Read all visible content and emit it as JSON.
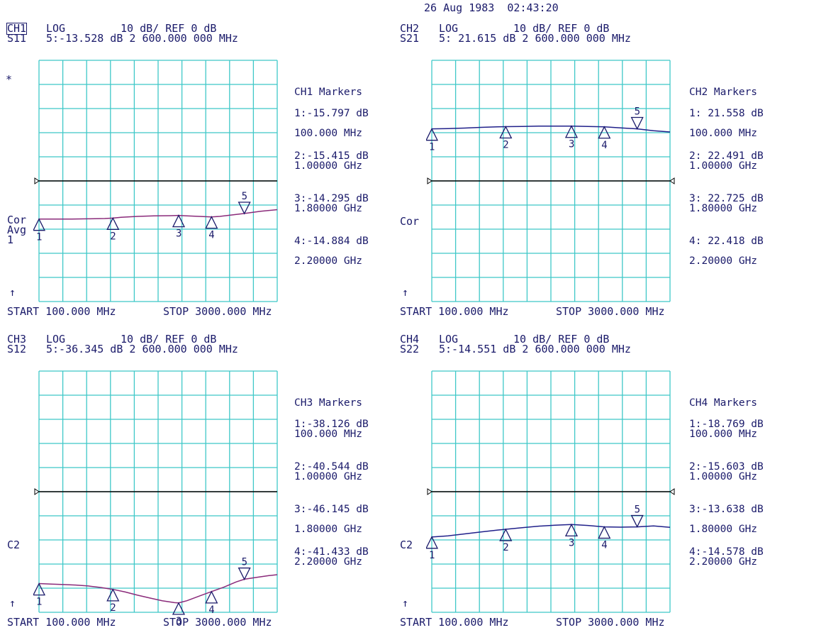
{
  "timestamp": "26 Aug 1983  02:43:20",
  "colors": {
    "grid": "#3fc8c8",
    "text": "#1a1a6a",
    "trace_purple": "#8a2a7a",
    "trace_blue": "#20208a",
    "ref": "#000000"
  },
  "channels": [
    {
      "id": "ch1",
      "label": "CH1",
      "boxed": true,
      "format": "LOG",
      "scale": "10 dB/ REF 0 dB",
      "param": "S11",
      "readout": "5:-13.528 dB 2 600.000 000 MHz",
      "start": "START 100.000 MHz",
      "stop": "STOP 3000.000 MHz",
      "flags": [
        "Cor",
        "Avg",
        "1"
      ],
      "star": "*",
      "markers_title": "CH1 Markers",
      "markers": [
        {
          "value": "1:-15.797 dB",
          "freq": "100.000 MHz"
        },
        {
          "value": "2:-15.415 dB",
          "freq": "1.00000 GHz"
        },
        {
          "value": "3:-14.295 dB",
          "freq": "1.80000 GHz"
        },
        {
          "value": "4:-14.884 dB",
          "freq": "2.20000 GHz"
        }
      ]
    },
    {
      "id": "ch2",
      "label": "CH2",
      "boxed": false,
      "format": "LOG",
      "scale": "10 dB/ REF 0 dB",
      "param": "S21",
      "readout": "5: 21.615 dB 2 600.000 000 MHz",
      "start": "START 100.000 MHz",
      "stop": "STOP 3000.000 MHz",
      "flags": [
        "Cor"
      ],
      "star": "",
      "markers_title": "CH2 Markers",
      "markers": [
        {
          "value": "1: 21.558 dB",
          "freq": "100.000 MHz"
        },
        {
          "value": "2: 22.491 dB",
          "freq": "1.00000 GHz"
        },
        {
          "value": "3: 22.725 dB",
          "freq": "1.80000 GHz"
        },
        {
          "value": "4: 22.418 dB",
          "freq": "2.20000 GHz"
        }
      ]
    },
    {
      "id": "ch3",
      "label": "CH3",
      "boxed": false,
      "format": "LOG",
      "scale": "10 dB/ REF 0 dB",
      "param": "S12",
      "readout": "5:-36.345 dB 2 600.000 000 MHz",
      "start": "START 100.000 MHz",
      "stop": "STOP 3000.000 MHz",
      "flags": [
        "C2"
      ],
      "star": "",
      "markers_title": "CH3 Markers",
      "markers": [
        {
          "value": "1:-38.126 dB",
          "freq": "100.000 MHz"
        },
        {
          "value": "2:-40.544 dB",
          "freq": "1.00000 GHz"
        },
        {
          "value": "3:-46.145 dB",
          "freq": "1.80000 GHz"
        },
        {
          "value": "4:-41.433 dB",
          "freq": "2.20000 GHz"
        }
      ]
    },
    {
      "id": "ch4",
      "label": "CH4",
      "boxed": false,
      "format": "LOG",
      "scale": "10 dB/ REF 0 dB",
      "param": "S22",
      "readout": "5:-14.551 dB 2 600.000 000 MHz",
      "start": "START 100.000 MHz",
      "stop": "STOP 3000.000 MHz",
      "flags": [
        "C2"
      ],
      "star": "",
      "markers_title": "CH4 Markers",
      "markers": [
        {
          "value": "1:-18.769 dB",
          "freq": "100.000 MHz"
        },
        {
          "value": "2:-15.603 dB",
          "freq": "1.00000 GHz"
        },
        {
          "value": "3:-13.638 dB",
          "freq": "1.80000 GHz"
        },
        {
          "value": "4:-14.578 dB",
          "freq": "2.20000 GHz"
        }
      ]
    }
  ],
  "chart_data": [
    {
      "type": "line",
      "title": "S11",
      "xlabel": "MHz",
      "ylabel": "dB",
      "xlim": [
        100,
        3000
      ],
      "ylim": [
        -50,
        50
      ],
      "grid": true,
      "reference_value": 0,
      "series": [
        {
          "name": "S11",
          "color": "#8a2a7a",
          "x": [
            100,
            300,
            500,
            700,
            900,
            1000,
            1100,
            1300,
            1500,
            1700,
            1800,
            1900,
            2100,
            2200,
            2300,
            2500,
            2600,
            2800,
            3000
          ],
          "y": [
            -15.8,
            -15.8,
            -15.8,
            -15.7,
            -15.6,
            -15.4,
            -15.1,
            -14.7,
            -14.5,
            -14.4,
            -14.3,
            -14.5,
            -14.8,
            -14.9,
            -14.7,
            -13.9,
            -13.5,
            -12.6,
            -11.9
          ]
        }
      ],
      "markers": [
        {
          "n": 1,
          "x": 100,
          "y": -15.797
        },
        {
          "n": 2,
          "x": 1000,
          "y": -15.415
        },
        {
          "n": 3,
          "x": 1800,
          "y": -14.295
        },
        {
          "n": 4,
          "x": 2200,
          "y": -14.884
        },
        {
          "n": 5,
          "x": 2600,
          "y": -13.528
        }
      ]
    },
    {
      "type": "line",
      "title": "S21",
      "xlabel": "MHz",
      "ylabel": "dB",
      "xlim": [
        100,
        3000
      ],
      "ylim": [
        -50,
        50
      ],
      "grid": true,
      "reference_value": 0,
      "series": [
        {
          "name": "S21",
          "color": "#20208a",
          "x": [
            100,
            300,
            500,
            700,
            900,
            1000,
            1200,
            1400,
            1600,
            1800,
            2000,
            2200,
            2400,
            2600,
            2800,
            3000
          ],
          "y": [
            21.6,
            21.7,
            21.9,
            22.2,
            22.4,
            22.5,
            22.6,
            22.7,
            22.7,
            22.7,
            22.6,
            22.4,
            22.0,
            21.6,
            20.8,
            20.3
          ]
        }
      ],
      "markers": [
        {
          "n": 1,
          "x": 100,
          "y": 21.558
        },
        {
          "n": 2,
          "x": 1000,
          "y": 22.491
        },
        {
          "n": 3,
          "x": 1800,
          "y": 22.725
        },
        {
          "n": 4,
          "x": 2200,
          "y": 22.418
        },
        {
          "n": 5,
          "x": 2600,
          "y": 21.615
        }
      ]
    },
    {
      "type": "line",
      "title": "S12",
      "xlabel": "MHz",
      "ylabel": "dB",
      "xlim": [
        100,
        3000
      ],
      "ylim": [
        -50,
        50
      ],
      "grid": true,
      "reference_value": 0,
      "series": [
        {
          "name": "S12",
          "color": "#8a2a7a",
          "x": [
            100,
            250,
            400,
            550,
            700,
            850,
            1000,
            1150,
            1300,
            1450,
            1600,
            1750,
            1800,
            1900,
            2050,
            2200,
            2350,
            2500,
            2600,
            2750,
            2900,
            3000
          ],
          "y": [
            -38.1,
            -38.3,
            -38.5,
            -38.7,
            -39.1,
            -39.7,
            -40.5,
            -41.6,
            -42.9,
            -44.1,
            -45.2,
            -46.0,
            -46.1,
            -45.2,
            -43.3,
            -41.4,
            -39.6,
            -37.4,
            -36.3,
            -35.5,
            -34.8,
            -34.4
          ]
        }
      ],
      "markers": [
        {
          "n": 1,
          "x": 100,
          "y": -38.126
        },
        {
          "n": 2,
          "x": 1000,
          "y": -40.544
        },
        {
          "n": 3,
          "x": 1800,
          "y": -46.145
        },
        {
          "n": 4,
          "x": 2200,
          "y": -41.433
        },
        {
          "n": 5,
          "x": 2600,
          "y": -36.345
        }
      ]
    },
    {
      "type": "line",
      "title": "S22",
      "xlabel": "MHz",
      "ylabel": "dB",
      "xlim": [
        100,
        3000
      ],
      "ylim": [
        -50,
        50
      ],
      "grid": true,
      "reference_value": 0,
      "series": [
        {
          "name": "S22",
          "color": "#20208a",
          "x": [
            100,
            300,
            500,
            700,
            900,
            1000,
            1200,
            1400,
            1600,
            1800,
            2000,
            2200,
            2400,
            2600,
            2800,
            3000
          ],
          "y": [
            -18.8,
            -18.3,
            -17.5,
            -16.7,
            -15.9,
            -15.6,
            -14.9,
            -14.3,
            -13.9,
            -13.6,
            -14.0,
            -14.6,
            -14.7,
            -14.6,
            -14.2,
            -14.8
          ]
        }
      ],
      "markers": [
        {
          "n": 1,
          "x": 100,
          "y": -18.769
        },
        {
          "n": 2,
          "x": 1000,
          "y": -15.603
        },
        {
          "n": 3,
          "x": 1800,
          "y": -13.638
        },
        {
          "n": 4,
          "x": 2200,
          "y": -14.578
        },
        {
          "n": 5,
          "x": 2600,
          "y": -14.551
        }
      ]
    }
  ]
}
